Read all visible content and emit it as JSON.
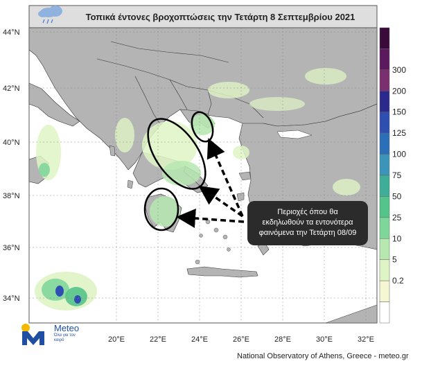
{
  "title": "Τοπικά έντονες βροχοπτώσεις την Τετάρτη 8 Σεπτεμβρίου 2021",
  "title_icon": "rain-cloud-icon",
  "lat_labels": [
    "44°N",
    "42°N",
    "40°N",
    "38°N",
    "36°N",
    "34°N"
  ],
  "lon_labels": [
    "20°E",
    "22°E",
    "24°E",
    "26°E",
    "28°E",
    "30°E",
    "32°E"
  ],
  "colorbar": {
    "labels": [
      "300",
      "200",
      "150",
      "125",
      "100",
      "75",
      "50",
      "25",
      "10",
      "5",
      "0.2"
    ],
    "colors": [
      "#3a0a3a",
      "#5b1a5e",
      "#7a2f6e",
      "#2b2a8c",
      "#2f4fb0",
      "#2a6fb8",
      "#3b95b8",
      "#3fae98",
      "#55c48a",
      "#7fd69b",
      "#b6e8b0",
      "#dff4c4",
      "#f4f7d2",
      "#ffffff"
    ]
  },
  "callout": {
    "line1": "Περιοχές όπου θα",
    "line2": "εκδηλωθούν τα εντονότερα",
    "line3": "φαινόμενα την Τετάρτη 08/09"
  },
  "logo": {
    "name": "Meteo",
    "tagline": "Όλα για τον καιρό"
  },
  "footer": "National Observatory of Athens, Greece - meteo.gr",
  "colors": {
    "land": "#b4b4b4",
    "sea": "#ffffff",
    "rain_light": "#dff4c4",
    "rain_mid": "#b6e8b0"
  }
}
